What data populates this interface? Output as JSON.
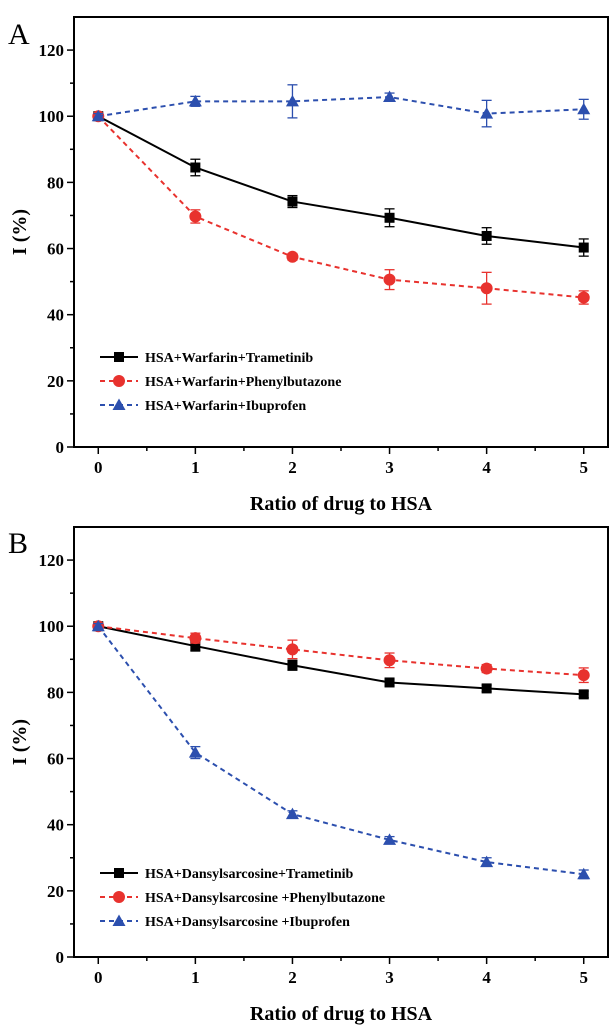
{
  "chart_data": [
    {
      "type": "line",
      "panel_label": "A",
      "xlabel": "Ratio of drug to HSA",
      "ylabel": "I (%)",
      "xlim": [
        -0.25,
        5.25
      ],
      "ylim": [
        0,
        130
      ],
      "x_ticks": [
        0,
        1,
        2,
        3,
        4,
        5
      ],
      "y_ticks": [
        0,
        20,
        40,
        60,
        80,
        100,
        120
      ],
      "grid": false,
      "legend_position": "bottom-left",
      "series": [
        {
          "name": "HSA+Warfarin+Trametinib",
          "color": "#000000",
          "marker": "square",
          "dashed": false,
          "x": [
            0,
            1,
            2,
            3,
            4,
            5
          ],
          "values": [
            100,
            84.5,
            74.2,
            69.3,
            63.8,
            60.3
          ],
          "errors": [
            0.8,
            2.5,
            1.8,
            2.7,
            2.5,
            2.6
          ]
        },
        {
          "name": "HSA+Warfarin+Phenylbutazone",
          "color": "#e8322e",
          "marker": "circle",
          "dashed": true,
          "x": [
            0,
            1,
            2,
            3,
            4,
            5
          ],
          "values": [
            100,
            69.7,
            57.5,
            50.6,
            48.0,
            45.2
          ],
          "errors": [
            0.8,
            2.0,
            1.0,
            3.0,
            4.8,
            2.0
          ]
        },
        {
          "name": "HSA+Warfarin+Ibuprofen",
          "color": "#2c4fae",
          "marker": "triangle",
          "dashed": true,
          "x": [
            0,
            1,
            2,
            3,
            4,
            5
          ],
          "values": [
            100,
            104.5,
            104.5,
            105.8,
            100.8,
            102.1
          ],
          "errors": [
            0.8,
            1.5,
            5.0,
            1.2,
            4.0,
            3.0
          ]
        }
      ]
    },
    {
      "type": "line",
      "panel_label": "B",
      "xlabel": "Ratio of drug to HSA",
      "ylabel": "I (%)",
      "xlim": [
        -0.25,
        5.25
      ],
      "ylim": [
        0,
        130
      ],
      "x_ticks": [
        0,
        1,
        2,
        3,
        4,
        5
      ],
      "y_ticks": [
        0,
        20,
        40,
        60,
        80,
        100,
        120
      ],
      "grid": false,
      "legend_position": "bottom-left",
      "series": [
        {
          "name": "HSA+Dansylsarcosine+Trametinib",
          "color": "#000000",
          "marker": "square",
          "dashed": false,
          "x": [
            0,
            1,
            2,
            3,
            4,
            5
          ],
          "values": [
            100,
            94.0,
            88.2,
            83.0,
            81.2,
            79.4
          ],
          "errors": [
            0.8,
            1.5,
            1.5,
            1.0,
            1.0,
            1.0
          ]
        },
        {
          "name": "HSA+Dansylsarcosine +Phenylbutazone",
          "color": "#e8322e",
          "marker": "circle",
          "dashed": true,
          "x": [
            0,
            1,
            2,
            3,
            4,
            5
          ],
          "values": [
            100,
            96.4,
            93.0,
            89.7,
            87.2,
            85.2
          ],
          "errors": [
            0.8,
            1.5,
            2.8,
            2.2,
            1.2,
            2.2
          ]
        },
        {
          "name": "HSA+Dansylsarcosine +Ibuprofen",
          "color": "#2c4fae",
          "marker": "triangle",
          "dashed": true,
          "x": [
            0,
            1,
            2,
            3,
            4,
            5
          ],
          "values": [
            100,
            61.8,
            43.2,
            35.4,
            28.7,
            25.0
          ],
          "errors": [
            0.8,
            1.8,
            1.0,
            1.0,
            1.3,
            1.3
          ]
        }
      ]
    }
  ]
}
